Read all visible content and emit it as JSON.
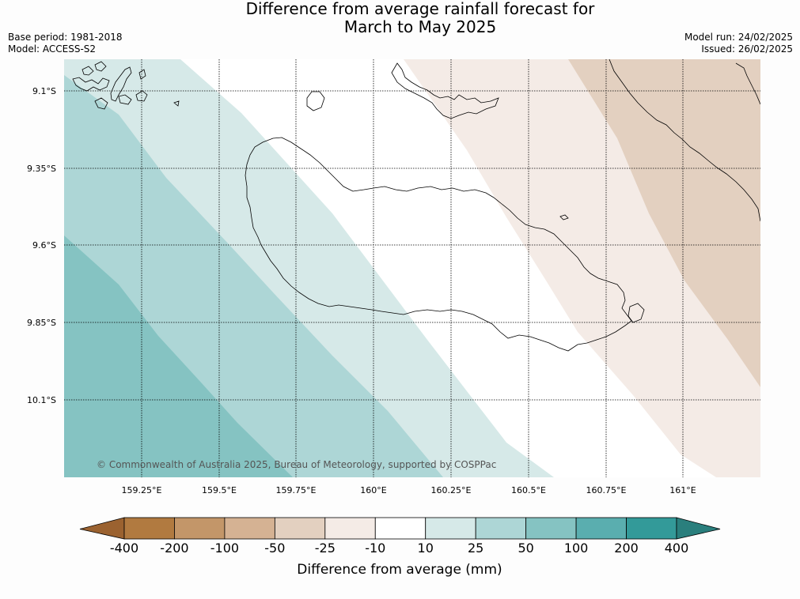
{
  "title": {
    "line1": "Difference from average rainfall forecast for",
    "line2": "March to May 2025"
  },
  "meta": {
    "base_period": "Base period: 1981-2018",
    "model": "Model: ACCESS-S2",
    "model_run": "Model run: 24/02/2025",
    "issued": "Issued: 26/02/2025"
  },
  "map": {
    "lat_labels": [
      "9.1°S",
      "9.35°S",
      "9.6°S",
      "9.85°S",
      "10.1°S"
    ],
    "lon_labels": [
      "159.25°E",
      "159.5°E",
      "159.75°E",
      "160°E",
      "160.25°E",
      "160.5°E",
      "160.75°E",
      "161°E"
    ],
    "copyright": "© Commonwealth of Australia 2025, Bureau of Meteorology, supported by COSPPac",
    "colors": {
      "wet_10_25": "#d6e9e8",
      "wet_25_50": "#add6d6",
      "wet_50_100": "#85c3c2",
      "dry_25_10": "#f4ebe6",
      "dry_50_25": "#e3d0c0",
      "near_zero": "#ffffff",
      "coast": "#000000",
      "grid": "#000000"
    }
  },
  "colorbar": {
    "title": "Difference from average (mm)",
    "ticks": [
      "-400",
      "-200",
      "-100",
      "-50",
      "-25",
      "-10",
      "10",
      "25",
      "50",
      "100",
      "200",
      "400"
    ],
    "colors": [
      "#9b6230",
      "#b17a40",
      "#c39669",
      "#d5b293",
      "#e3d0c0",
      "#f4ebe6",
      "#ffffff",
      "#d6e9e8",
      "#add6d6",
      "#85c3c2",
      "#5aaeaf",
      "#339a99",
      "#2a7f7d"
    ]
  }
}
